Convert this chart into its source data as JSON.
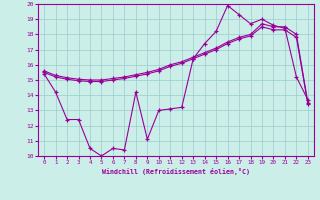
{
  "xlabel": "Windchill (Refroidissement éolien,°C)",
  "bg_color": "#cceee8",
  "grid_color": "#99cccc",
  "line_color": "#990099",
  "xlim": [
    -0.5,
    23.5
  ],
  "ylim": [
    10,
    20
  ],
  "yticks": [
    10,
    11,
    12,
    13,
    14,
    15,
    16,
    17,
    18,
    19,
    20
  ],
  "xticks": [
    0,
    1,
    2,
    3,
    4,
    5,
    6,
    7,
    8,
    9,
    10,
    11,
    12,
    13,
    14,
    15,
    16,
    17,
    18,
    19,
    20,
    21,
    22,
    23
  ],
  "line1_x": [
    0,
    1,
    2,
    3,
    4,
    5,
    6,
    7,
    8,
    9,
    10,
    11,
    12,
    13,
    14,
    15,
    16,
    17,
    18,
    19,
    20,
    21,
    22,
    23
  ],
  "line1_y": [
    15.6,
    15.3,
    15.15,
    15.05,
    15.0,
    15.0,
    15.1,
    15.2,
    15.35,
    15.5,
    15.7,
    16.0,
    16.2,
    16.5,
    16.8,
    17.1,
    17.5,
    17.8,
    18.0,
    18.7,
    18.5,
    18.5,
    18.0,
    13.5
  ],
  "line2_x": [
    0,
    1,
    2,
    3,
    4,
    5,
    6,
    7,
    8,
    9,
    10,
    11,
    12,
    13,
    14,
    15,
    16,
    17,
    18,
    19,
    20,
    21,
    22,
    23
  ],
  "line2_y": [
    15.5,
    15.2,
    15.05,
    14.95,
    14.9,
    14.9,
    15.0,
    15.1,
    15.25,
    15.4,
    15.6,
    15.9,
    16.1,
    16.4,
    16.7,
    17.0,
    17.4,
    17.7,
    17.9,
    18.5,
    18.3,
    18.3,
    17.8,
    13.4
  ],
  "line3_x": [
    0,
    1,
    2,
    3,
    4,
    5,
    6,
    7,
    8,
    9,
    10,
    11,
    12,
    13,
    14,
    15,
    16,
    17,
    18,
    19,
    20,
    21,
    22,
    23
  ],
  "line3_y": [
    15.4,
    14.2,
    12.4,
    12.4,
    10.5,
    10.0,
    10.5,
    10.4,
    14.2,
    11.1,
    13.0,
    13.1,
    13.2,
    16.4,
    17.4,
    18.2,
    19.9,
    19.3,
    18.7,
    19.0,
    18.6,
    18.4,
    15.2,
    13.7
  ]
}
